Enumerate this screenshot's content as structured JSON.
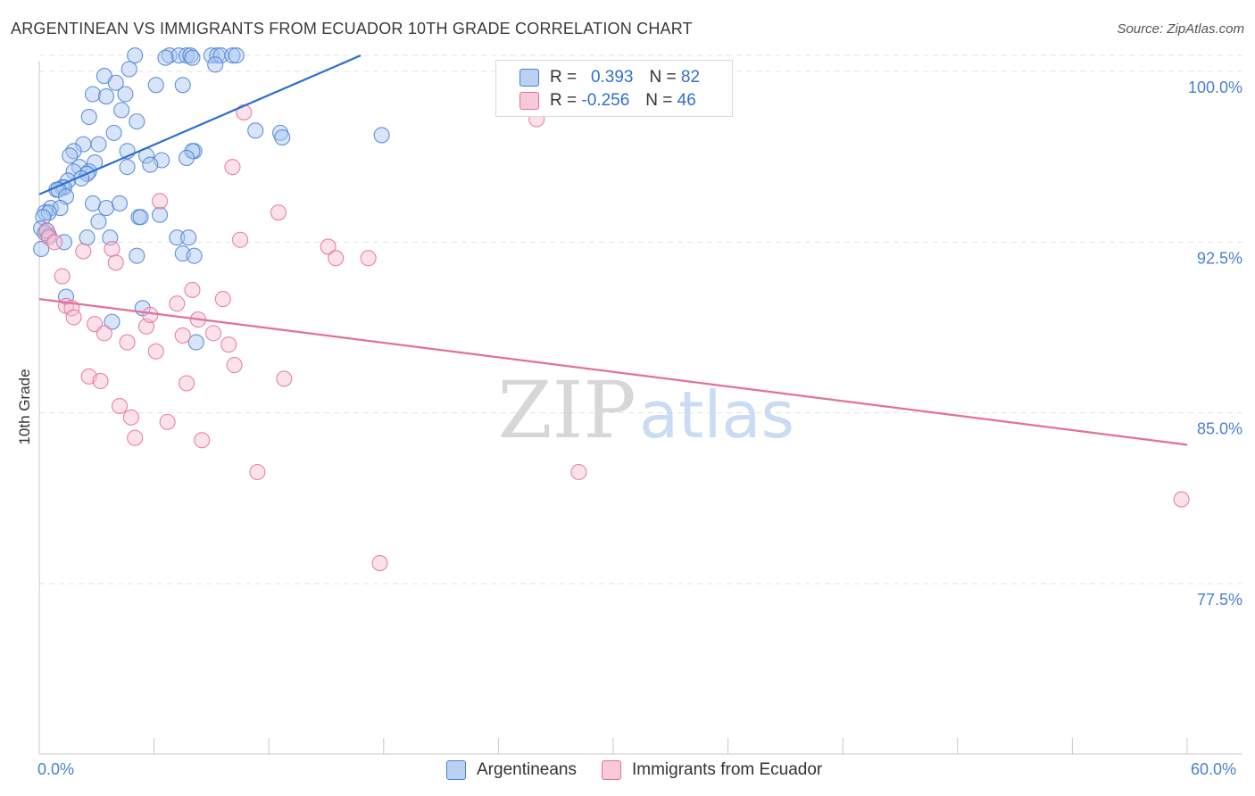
{
  "title": "ARGENTINEAN VS IMMIGRANTS FROM ECUADOR 10TH GRADE CORRELATION CHART",
  "source": "Source: ZipAtlas.com",
  "watermark": {
    "zip": "ZIP",
    "atlas": "atlas"
  },
  "legend": {
    "r_label": "R =",
    "n_label": "N =",
    "series1": {
      "r": "0.393",
      "n": "82"
    },
    "series2": {
      "r": "-0.256",
      "n": "46"
    }
  },
  "chart_data": {
    "type": "scatter",
    "title": "ARGENTINEAN VS IMMIGRANTS FROM ECUADOR 10TH GRADE CORRELATION CHART",
    "xlabel": "",
    "ylabel": "10th Grade",
    "xlim": [
      0,
      60
    ],
    "ylim": [
      70,
      101.5
    ],
    "x_tick_labels": [
      "0.0%",
      "60.0%"
    ],
    "y_ticks": [
      100.0,
      92.5,
      85.0,
      77.5
    ],
    "y_tick_labels": [
      "100.0%",
      "92.5%",
      "85.0%",
      "77.5%"
    ],
    "colors": {
      "blue": "#4a7fd4",
      "blue_fill": "#a9c6f0",
      "pink": "#e46f98",
      "pink_fill": "#f6bfd1",
      "tick_text": "#4a7fd4"
    },
    "series": [
      {
        "name": "Argentineans",
        "color": "#4a7fd4",
        "trend": {
          "x": [
            0,
            16.8
          ],
          "y": [
            94.6,
            100.7
          ]
        },
        "points": [
          [
            5.0,
            100.7
          ],
          [
            6.8,
            100.7
          ],
          [
            7.3,
            100.7
          ],
          [
            7.7,
            100.7
          ],
          [
            6.6,
            100.6
          ],
          [
            7.9,
            100.7
          ],
          [
            8.0,
            100.6
          ],
          [
            9.0,
            100.7
          ],
          [
            9.3,
            100.7
          ],
          [
            9.5,
            100.7
          ],
          [
            10.1,
            100.7
          ],
          [
            10.3,
            100.7
          ],
          [
            9.2,
            100.3
          ],
          [
            4.7,
            100.1
          ],
          [
            3.4,
            99.8
          ],
          [
            4.0,
            99.5
          ],
          [
            6.1,
            99.4
          ],
          [
            7.5,
            99.4
          ],
          [
            2.8,
            99.0
          ],
          [
            3.5,
            98.9
          ],
          [
            4.5,
            99.0
          ],
          [
            4.3,
            98.3
          ],
          [
            2.6,
            98.0
          ],
          [
            5.1,
            97.8
          ],
          [
            3.9,
            97.3
          ],
          [
            2.3,
            96.8
          ],
          [
            1.8,
            96.5
          ],
          [
            1.6,
            96.3
          ],
          [
            4.6,
            96.5
          ],
          [
            5.6,
            96.3
          ],
          [
            8.1,
            96.5
          ],
          [
            8.0,
            96.5
          ],
          [
            6.4,
            96.1
          ],
          [
            7.7,
            96.2
          ],
          [
            2.1,
            95.8
          ],
          [
            2.9,
            96.0
          ],
          [
            1.8,
            95.6
          ],
          [
            2.6,
            95.6
          ],
          [
            4.6,
            95.8
          ],
          [
            5.8,
            95.9
          ],
          [
            2.5,
            95.5
          ],
          [
            1.5,
            95.2
          ],
          [
            2.2,
            95.3
          ],
          [
            1.2,
            94.9
          ],
          [
            1.3,
            94.9
          ],
          [
            0.9,
            94.8
          ],
          [
            1.0,
            94.8
          ],
          [
            1.4,
            94.5
          ],
          [
            2.8,
            94.2
          ],
          [
            3.5,
            94.0
          ],
          [
            4.2,
            94.2
          ],
          [
            0.6,
            94.0
          ],
          [
            1.1,
            94.0
          ],
          [
            0.3,
            93.8
          ],
          [
            0.5,
            93.8
          ],
          [
            0.2,
            93.6
          ],
          [
            3.1,
            93.4
          ],
          [
            5.2,
            93.6
          ],
          [
            5.3,
            93.6
          ],
          [
            6.3,
            93.7
          ],
          [
            0.1,
            93.1
          ],
          [
            0.4,
            93.0
          ],
          [
            0.5,
            92.8
          ],
          [
            0.3,
            92.9
          ],
          [
            2.5,
            92.7
          ],
          [
            3.7,
            92.7
          ],
          [
            7.2,
            92.7
          ],
          [
            7.8,
            92.7
          ],
          [
            0.1,
            92.2
          ],
          [
            1.3,
            92.5
          ],
          [
            5.1,
            91.9
          ],
          [
            7.5,
            92.0
          ],
          [
            8.1,
            91.9
          ],
          [
            1.4,
            90.1
          ],
          [
            3.8,
            89.0
          ],
          [
            5.4,
            89.6
          ],
          [
            8.2,
            88.1
          ],
          [
            11.3,
            97.4
          ],
          [
            12.6,
            97.3
          ],
          [
            12.7,
            97.1
          ],
          [
            17.9,
            97.2
          ],
          [
            3.1,
            96.8
          ]
        ]
      },
      {
        "name": "Immigrants from Ecuador",
        "color": "#e46f98",
        "trend": {
          "x": [
            0,
            60
          ],
          "y": [
            90.0,
            83.6
          ]
        },
        "points": [
          [
            0.4,
            93.0
          ],
          [
            0.5,
            92.7
          ],
          [
            0.8,
            92.5
          ],
          [
            1.2,
            91.0
          ],
          [
            1.4,
            89.7
          ],
          [
            1.7,
            89.6
          ],
          [
            1.8,
            89.2
          ],
          [
            2.3,
            92.1
          ],
          [
            2.6,
            86.6
          ],
          [
            2.9,
            88.9
          ],
          [
            3.2,
            86.4
          ],
          [
            3.4,
            88.5
          ],
          [
            3.8,
            92.2
          ],
          [
            4.0,
            91.6
          ],
          [
            4.2,
            85.3
          ],
          [
            4.6,
            88.1
          ],
          [
            4.8,
            84.8
          ],
          [
            5.0,
            83.9
          ],
          [
            5.6,
            88.8
          ],
          [
            5.8,
            89.3
          ],
          [
            6.1,
            87.7
          ],
          [
            6.3,
            94.3
          ],
          [
            6.7,
            84.6
          ],
          [
            7.2,
            89.8
          ],
          [
            7.5,
            88.4
          ],
          [
            7.7,
            86.3
          ],
          [
            8.0,
            90.4
          ],
          [
            8.3,
            89.1
          ],
          [
            8.5,
            83.8
          ],
          [
            9.1,
            88.5
          ],
          [
            9.6,
            90.0
          ],
          [
            9.9,
            88.0
          ],
          [
            10.2,
            87.1
          ],
          [
            10.5,
            92.6
          ],
          [
            10.7,
            98.2
          ],
          [
            10.1,
            95.8
          ],
          [
            11.4,
            82.4
          ],
          [
            12.5,
            93.8
          ],
          [
            12.8,
            86.5
          ],
          [
            15.1,
            92.3
          ],
          [
            15.5,
            91.8
          ],
          [
            17.2,
            91.8
          ],
          [
            17.8,
            78.4
          ],
          [
            26.0,
            97.9
          ],
          [
            28.2,
            82.4
          ],
          [
            59.7,
            81.2
          ]
        ]
      }
    ]
  }
}
